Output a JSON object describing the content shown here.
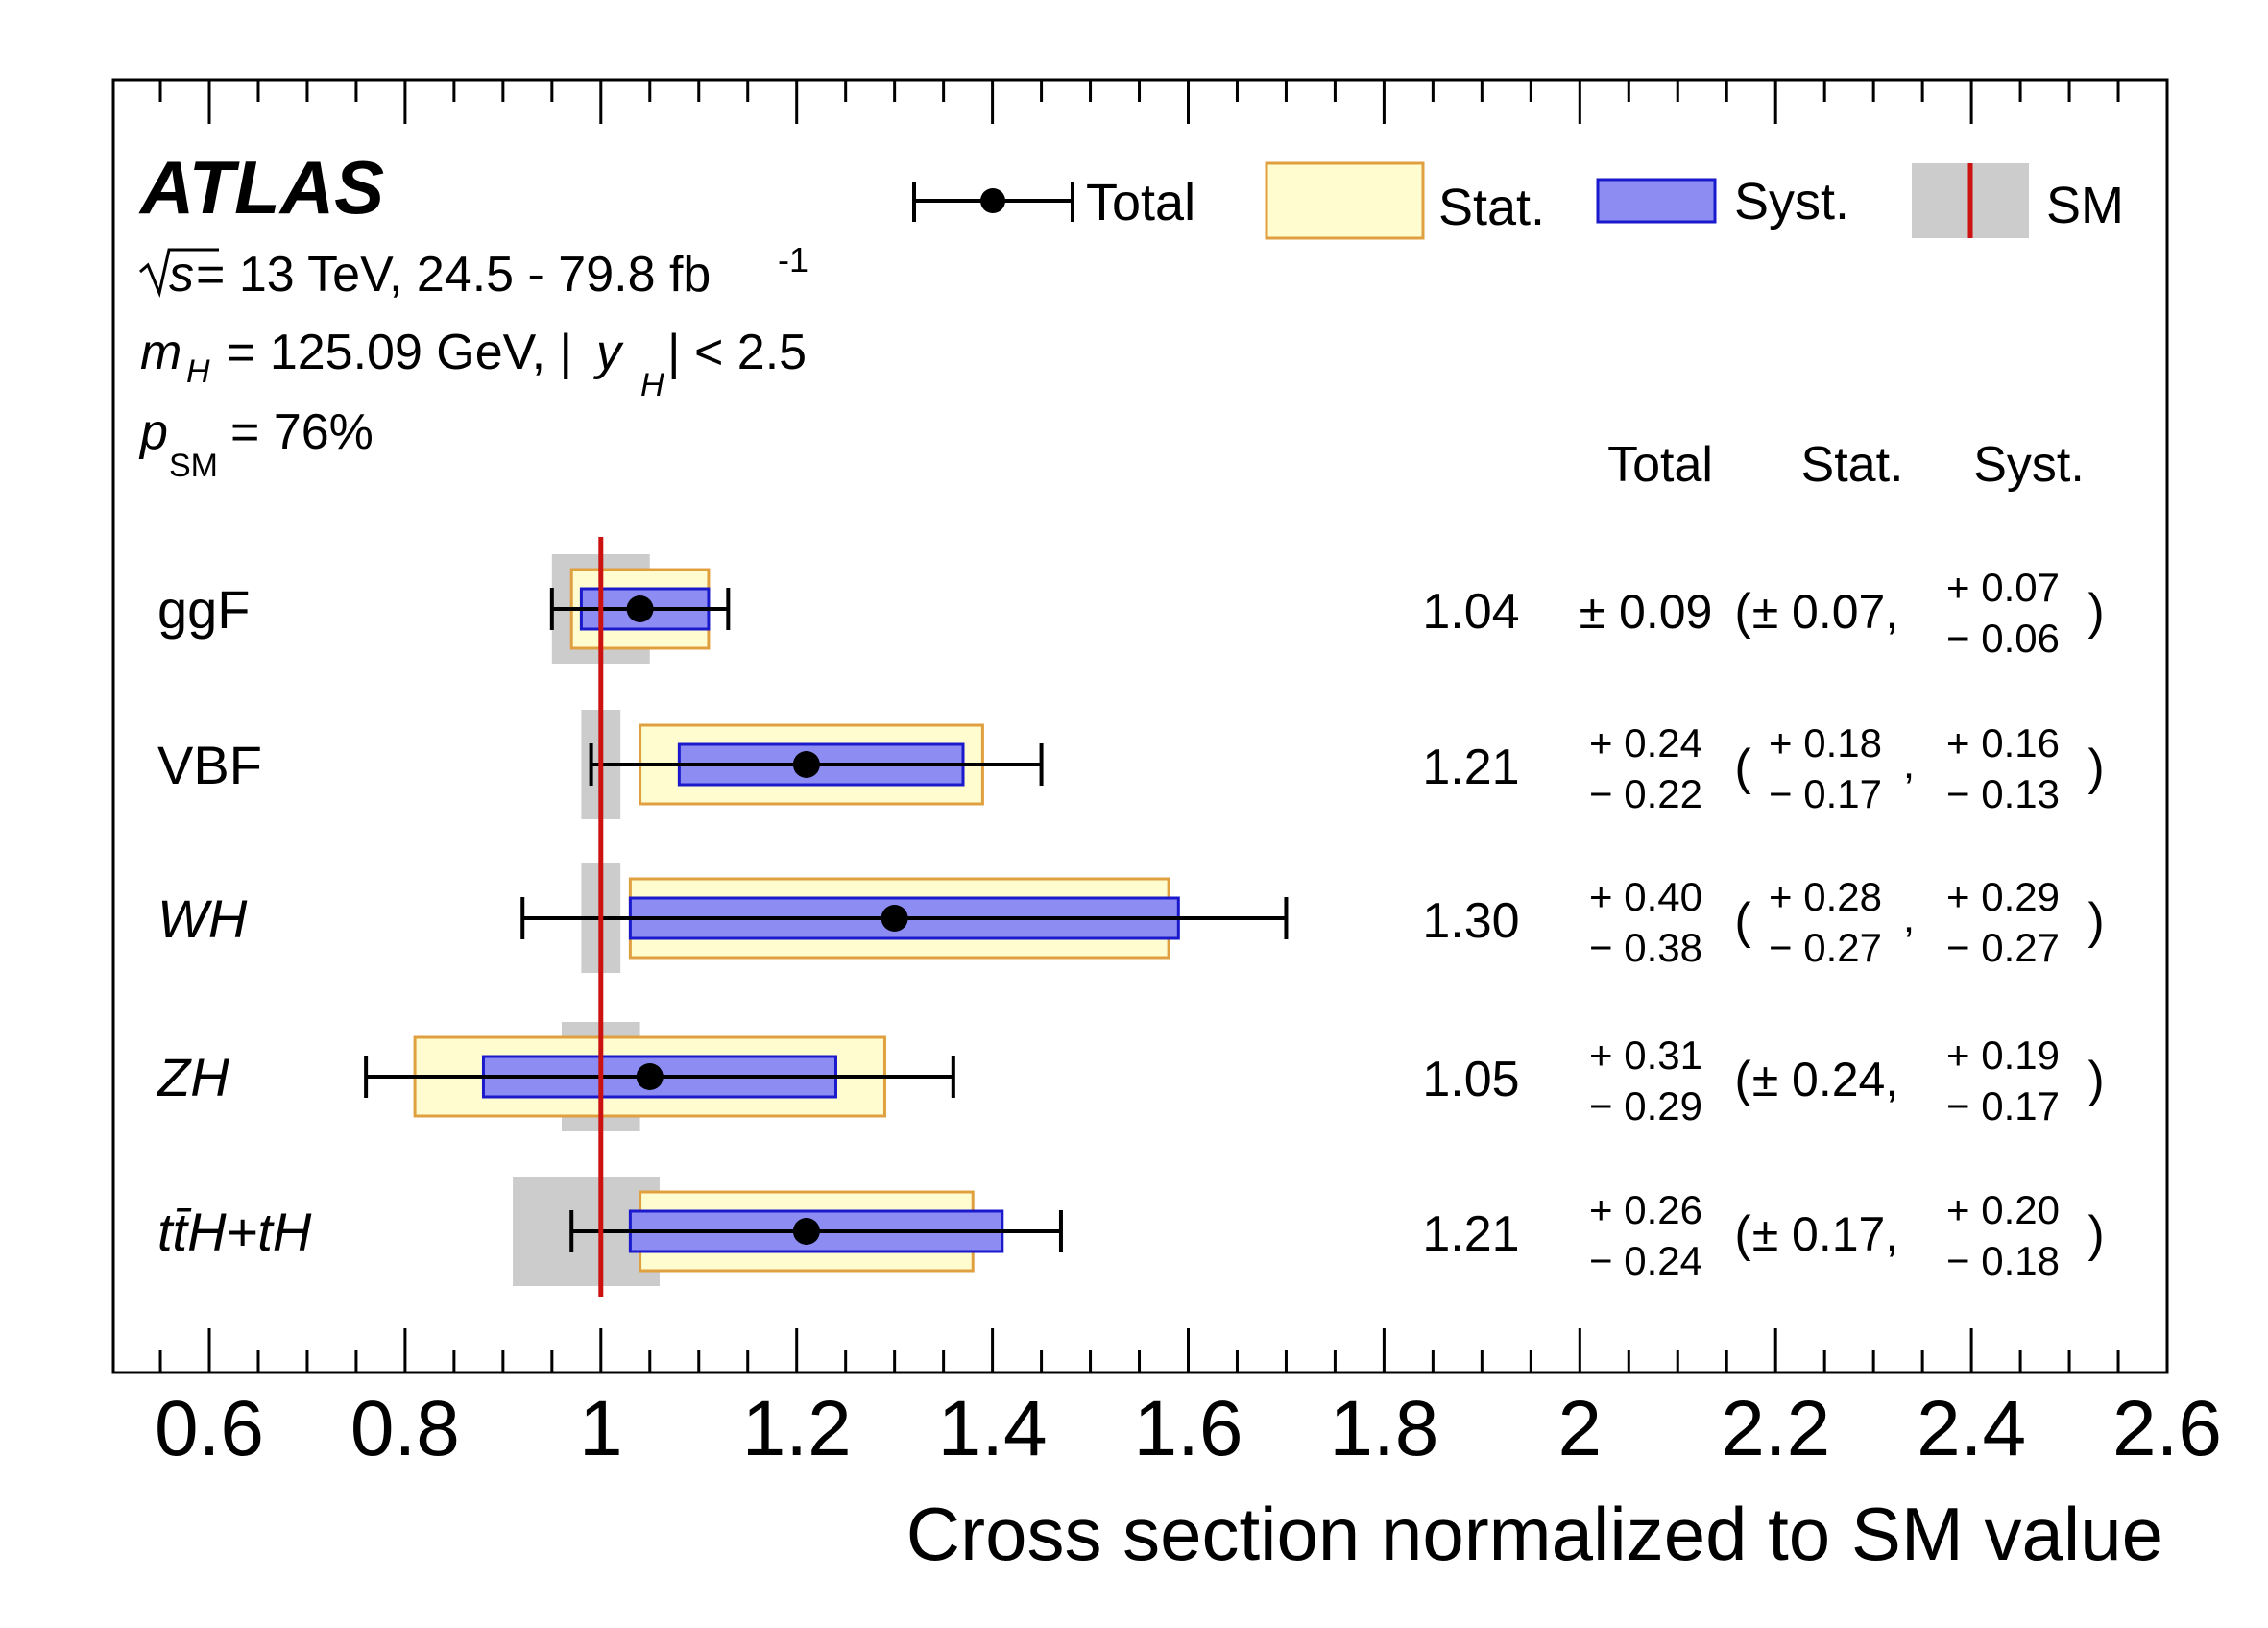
{
  "header": {
    "experiment": "ATLAS",
    "energy": "√s = 13 TeV, 24.5 - 79.8 fb⁻¹",
    "mass": "mH = 125.09 GeV, |yH| < 2.5",
    "psm": "pSM = 76%"
  },
  "legend": {
    "total": "Total",
    "stat": "Stat.",
    "syst": "Syst.",
    "sm": "SM"
  },
  "columns": {
    "total": "Total",
    "stat": "Stat.",
    "syst": "Syst."
  },
  "colors": {
    "stat_fill": "#fffdd0",
    "stat_stroke": "#e0a040",
    "syst_fill": "#8c8cf2",
    "syst_stroke": "#1a1acc",
    "sm_band": "#cccccc",
    "sm_line": "#cc1111"
  },
  "chart_data": {
    "type": "forest",
    "xlabel": "Cross section normalized to SM value",
    "xlim": [
      0.5,
      2.6
    ],
    "xticks": [
      0.6,
      0.8,
      1,
      1.2,
      1.4,
      1.6,
      1.8,
      2,
      2.2,
      2.4,
      2.6
    ],
    "xtick_labels": [
      "0.6",
      "0.8",
      "1",
      "1.2",
      "1.4",
      "1.6",
      "1.8",
      "2",
      "2.2",
      "2.4",
      "2.6"
    ],
    "sm_value": 1,
    "rows": [
      {
        "label": "ggF",
        "italic": false,
        "value": 1.04,
        "value_text": "1.04",
        "total": [
          0.09,
          0.09
        ],
        "stat": [
          0.07,
          0.07
        ],
        "syst": [
          0.07,
          0.06
        ],
        "sm_band": [
          0.95,
          1.05
        ],
        "total_text": {
          "sym": "± 0.09"
        },
        "stat_text": {
          "sym": "± 0.07,"
        },
        "syst_text": {
          "up": "+ 0.07",
          "down": "− 0.06"
        }
      },
      {
        "label": "VBF",
        "italic": false,
        "value": 1.21,
        "value_text": "1.21",
        "total": [
          0.24,
          0.22
        ],
        "stat": [
          0.18,
          0.17
        ],
        "syst": [
          0.16,
          0.13
        ],
        "sm_band": [
          0.98,
          1.02
        ],
        "total_text": {
          "up": "+ 0.24",
          "down": "− 0.22"
        },
        "stat_text": {
          "up": "+ 0.18",
          "down": "− 0.17"
        },
        "syst_text": {
          "up": "+ 0.16",
          "down": "− 0.13"
        }
      },
      {
        "label": "WH",
        "italic": true,
        "value": 1.3,
        "value_text": "1.30",
        "total": [
          0.4,
          0.38
        ],
        "stat": [
          0.28,
          0.27
        ],
        "syst": [
          0.29,
          0.27
        ],
        "sm_band": [
          0.98,
          1.02
        ],
        "total_text": {
          "up": "+ 0.40",
          "down": "− 0.38"
        },
        "stat_text": {
          "up": "+ 0.28",
          "down": "− 0.27"
        },
        "syst_text": {
          "up": "+ 0.29",
          "down": "− 0.27"
        }
      },
      {
        "label": "ZH",
        "italic": true,
        "value": 1.05,
        "value_text": "1.05",
        "total": [
          0.31,
          0.29
        ],
        "stat": [
          0.24,
          0.24
        ],
        "syst": [
          0.19,
          0.17
        ],
        "sm_band": [
          0.96,
          1.04
        ],
        "total_text": {
          "up": "+ 0.31",
          "down": "− 0.29"
        },
        "stat_text": {
          "sym": "± 0.24,"
        },
        "syst_text": {
          "up": "+ 0.19",
          "down": "− 0.17"
        }
      },
      {
        "label": "tt̄H+tH",
        "italic": true,
        "value": 1.21,
        "value_text": "1.21",
        "total": [
          0.26,
          0.24
        ],
        "stat": [
          0.17,
          0.17
        ],
        "syst": [
          0.2,
          0.18
        ],
        "sm_band": [
          0.91,
          1.06
        ],
        "total_text": {
          "up": "+ 0.26",
          "down": "− 0.24"
        },
        "stat_text": {
          "sym": "± 0.17,"
        },
        "syst_text": {
          "up": "+ 0.20",
          "down": "− 0.18"
        }
      }
    ]
  }
}
